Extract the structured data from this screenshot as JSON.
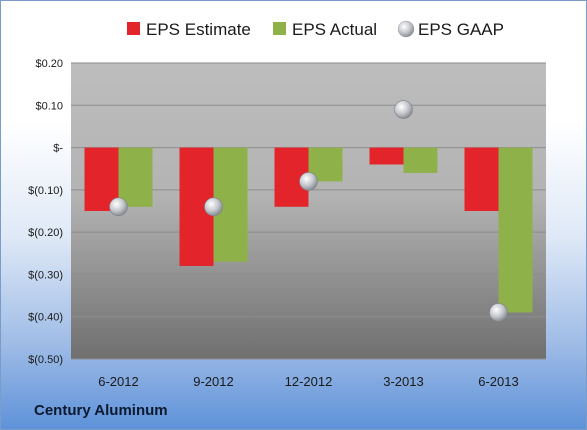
{
  "company": "Century Aluminum",
  "colors": {
    "estimate": "#e3242b",
    "actual": "#8fb14a",
    "gaap": "#c9cdd3"
  },
  "chart_data": {
    "type": "bar",
    "title": "",
    "xlabel": "",
    "ylabel": "",
    "categories": [
      "6-2012",
      "9-2012",
      "12-2012",
      "3-2013",
      "6-2013"
    ],
    "series": [
      {
        "name": "EPS Estimate",
        "kind": "bar",
        "values": [
          -0.15,
          -0.28,
          -0.14,
          -0.04,
          -0.15
        ]
      },
      {
        "name": "EPS Actual",
        "kind": "bar",
        "values": [
          -0.14,
          -0.27,
          -0.08,
          -0.06,
          -0.39
        ]
      },
      {
        "name": "EPS GAAP",
        "kind": "marker",
        "values": [
          -0.14,
          -0.14,
          -0.08,
          0.09,
          -0.39
        ]
      }
    ],
    "ylim": [
      -0.5,
      0.2
    ],
    "yticks": [
      0.2,
      0.1,
      0,
      -0.1,
      -0.2,
      -0.3,
      -0.4,
      -0.5
    ],
    "ytick_labels": [
      "$0.20",
      "$0.10",
      "$-",
      "$(0.10)",
      "$(0.20)",
      "$(0.30)",
      "$(0.40)",
      "$(0.50)"
    ],
    "grid": true,
    "legend_position": "top"
  }
}
